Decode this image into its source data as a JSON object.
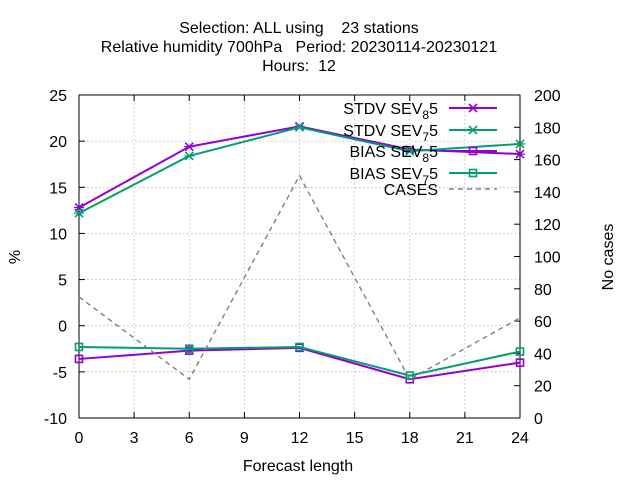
{
  "chart_data": {
    "type": "line",
    "title_lines": [
      "Selection: ALL using    23 stations",
      "Relative humidity 700hPa   Period: 20230114-20230121",
      "Hours:  12"
    ],
    "xlabel": "Forecast length",
    "ylabel": "%",
    "y2label": "No cases",
    "x": [
      0,
      6,
      12,
      18,
      24
    ],
    "xticks": [
      0,
      3,
      6,
      9,
      12,
      15,
      18,
      21,
      24
    ],
    "xlim": [
      0,
      24
    ],
    "ylim": [
      -10,
      25
    ],
    "yticks": [
      -10,
      -5,
      0,
      5,
      10,
      15,
      20,
      25
    ],
    "y2lim": [
      0,
      200
    ],
    "y2ticks": [
      0,
      20,
      40,
      60,
      80,
      100,
      120,
      140,
      160,
      180,
      200
    ],
    "grid": true,
    "legend_position": "top-right",
    "series": [
      {
        "name": "STDV SEV_8 5",
        "label_main": "STDV SEV",
        "label_sub": "8",
        "label_tail": "5",
        "axis": "left",
        "color": "#9400d3",
        "marker": "x",
        "dashed": false,
        "values": [
          12.8,
          19.4,
          21.6,
          19.1,
          18.6
        ]
      },
      {
        "name": "STDV SEV_7 5",
        "label_main": "STDV SEV",
        "label_sub": "7",
        "label_tail": "5",
        "axis": "left",
        "color": "#009e73",
        "marker": "x",
        "dashed": false,
        "values": [
          12.2,
          18.4,
          21.5,
          18.9,
          19.7
        ]
      },
      {
        "name": "BIAS SEV_8 5",
        "label_main": "BIAS SEV",
        "label_sub": "8",
        "label_tail": "5",
        "axis": "left",
        "color": "#9400d3",
        "marker": "square",
        "dashed": false,
        "values": [
          -3.6,
          -2.7,
          -2.4,
          -5.8,
          -4.0
        ]
      },
      {
        "name": "BIAS SEV_7 5",
        "label_main": "BIAS SEV",
        "label_sub": "7",
        "label_tail": "5",
        "axis": "left",
        "color": "#009e73",
        "marker": "square",
        "dashed": false,
        "values": [
          -2.3,
          -2.5,
          -2.3,
          -5.4,
          -2.8
        ]
      },
      {
        "name": "CASES",
        "label_main": "CASES",
        "label_sub": "",
        "label_tail": "",
        "axis": "right",
        "color": "#808080",
        "marker": "none",
        "dashed": true,
        "values": [
          75,
          24,
          150,
          24,
          62
        ]
      }
    ]
  }
}
